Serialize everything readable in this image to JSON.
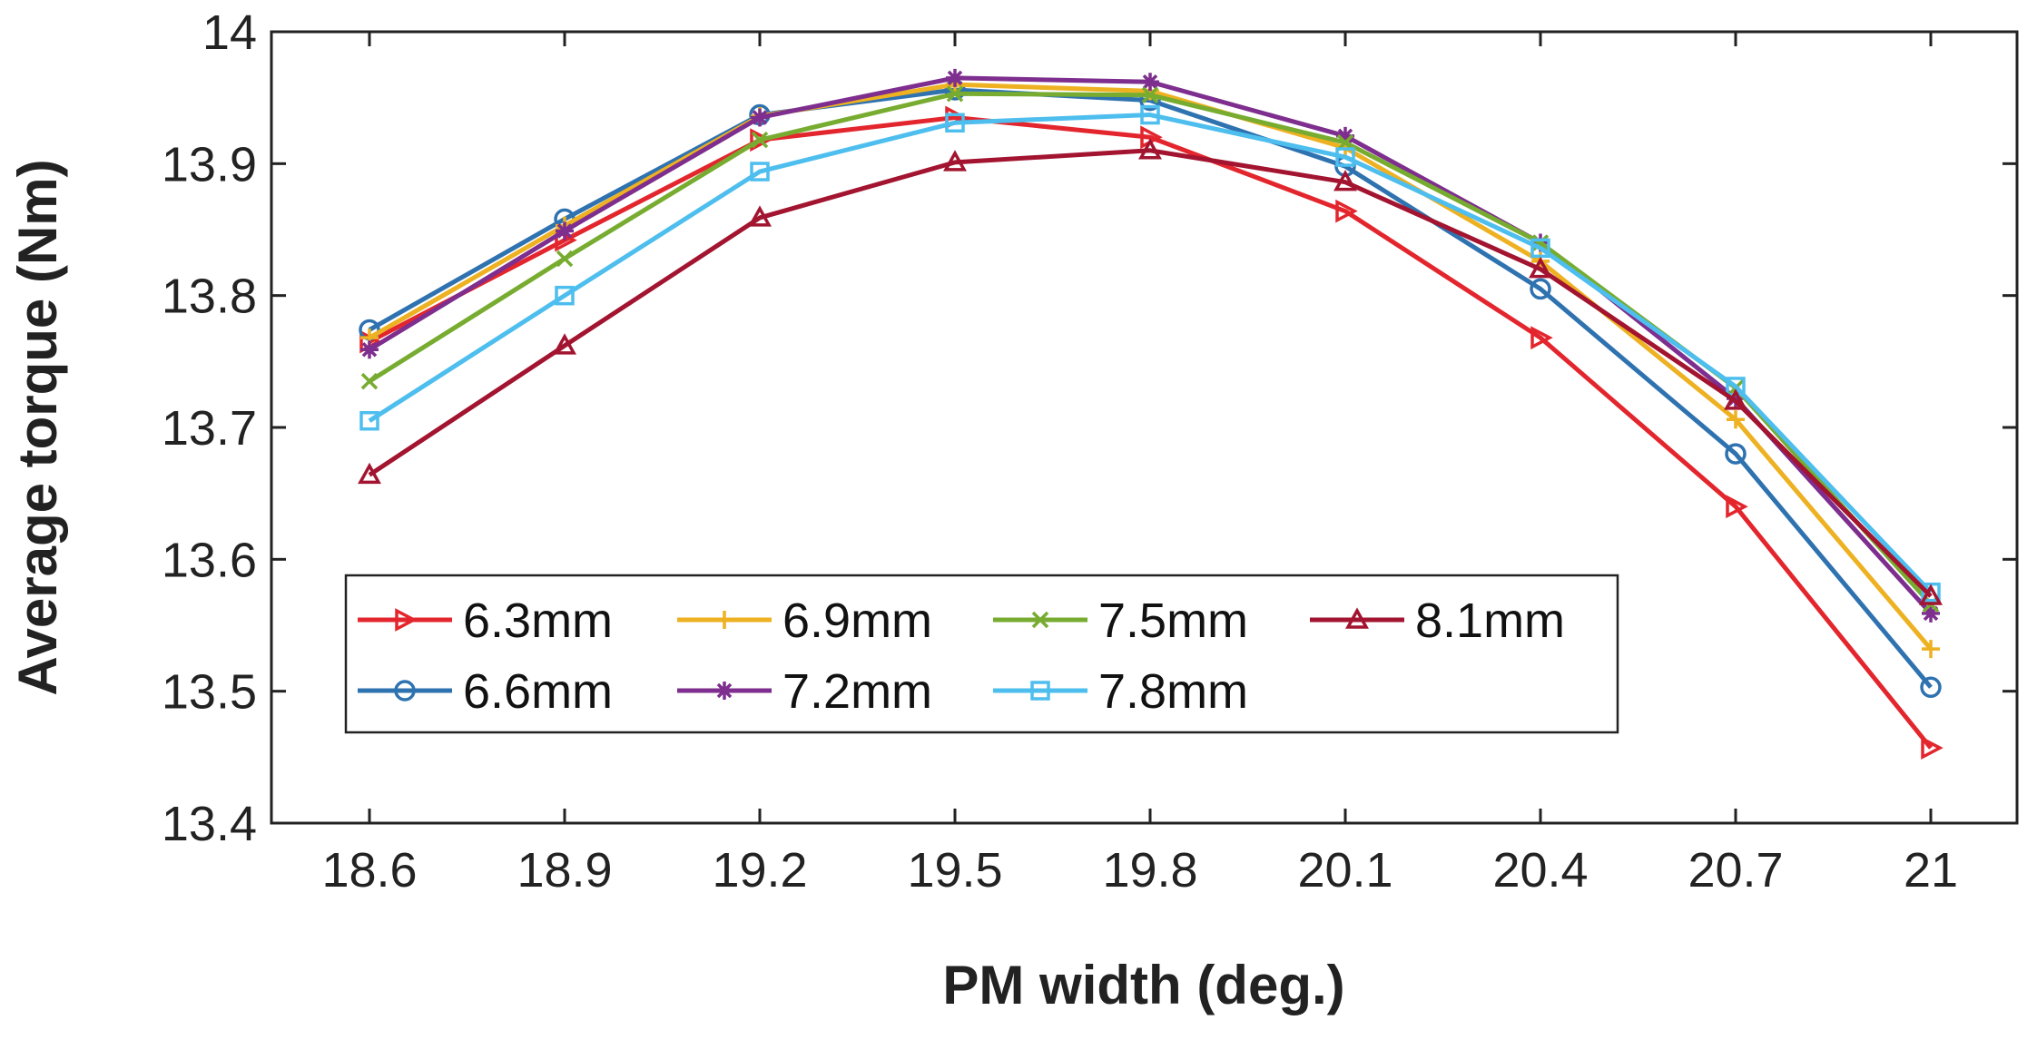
{
  "chart_data": {
    "type": "line",
    "title": "",
    "xlabel": "PM width (deg.)",
    "ylabel": "Average torque (Nm)",
    "x": [
      18.6,
      18.9,
      19.2,
      19.5,
      19.8,
      20.1,
      20.4,
      20.7,
      21
    ],
    "x_tick_labels": [
      "18.6",
      "18.9",
      "19.2",
      "19.5",
      "19.8",
      "20.1",
      "20.4",
      "20.7",
      "21"
    ],
    "y_ticks": [
      13.4,
      13.5,
      13.6,
      13.7,
      13.8,
      13.9,
      14
    ],
    "y_tick_labels": [
      "13.4",
      "13.5",
      "13.6",
      "13.7",
      "13.8",
      "13.9",
      "14"
    ],
    "ylim": [
      13.4,
      14
    ],
    "grid": false,
    "legend_position": "bottom-left",
    "series": [
      {
        "name": "6.3mm",
        "color": "#e3262d",
        "marker": "triangle-right",
        "values": [
          13.765,
          13.842,
          13.918,
          13.935,
          13.92,
          13.864,
          13.768,
          13.64,
          13.457
        ]
      },
      {
        "name": "6.6mm",
        "color": "#2e72b0",
        "marker": "circle",
        "values": [
          13.774,
          13.858,
          13.937,
          13.956,
          13.948,
          13.898,
          13.805,
          13.68,
          13.503
        ]
      },
      {
        "name": "6.9mm",
        "color": "#edb121",
        "marker": "plus",
        "values": [
          13.768,
          13.853,
          13.936,
          13.96,
          13.955,
          13.912,
          13.826,
          13.706,
          13.532
        ]
      },
      {
        "name": "7.2mm",
        "color": "#7e2e8e",
        "marker": "asterisk",
        "values": [
          13.759,
          13.849,
          13.935,
          13.965,
          13.962,
          13.921,
          13.84,
          13.722,
          13.559
        ]
      },
      {
        "name": "7.5mm",
        "color": "#77ac30",
        "marker": "x",
        "values": [
          13.735,
          13.828,
          13.918,
          13.953,
          13.952,
          13.916,
          13.84,
          13.73,
          13.566
        ]
      },
      {
        "name": "7.8mm",
        "color": "#4dbeee",
        "marker": "square",
        "values": [
          13.705,
          13.8,
          13.894,
          13.931,
          13.937,
          13.905,
          13.836,
          13.731,
          13.575
        ]
      },
      {
        "name": "8.1mm",
        "color": "#a2142f",
        "marker": "triangle-up",
        "values": [
          13.664,
          13.762,
          13.859,
          13.901,
          13.91,
          13.886,
          13.82,
          13.72,
          13.572
        ]
      }
    ],
    "legend_order": [
      "6.3mm",
      "6.9mm",
      "7.5mm",
      "8.1mm",
      "6.6mm",
      "7.2mm",
      "7.8mm"
    ]
  }
}
